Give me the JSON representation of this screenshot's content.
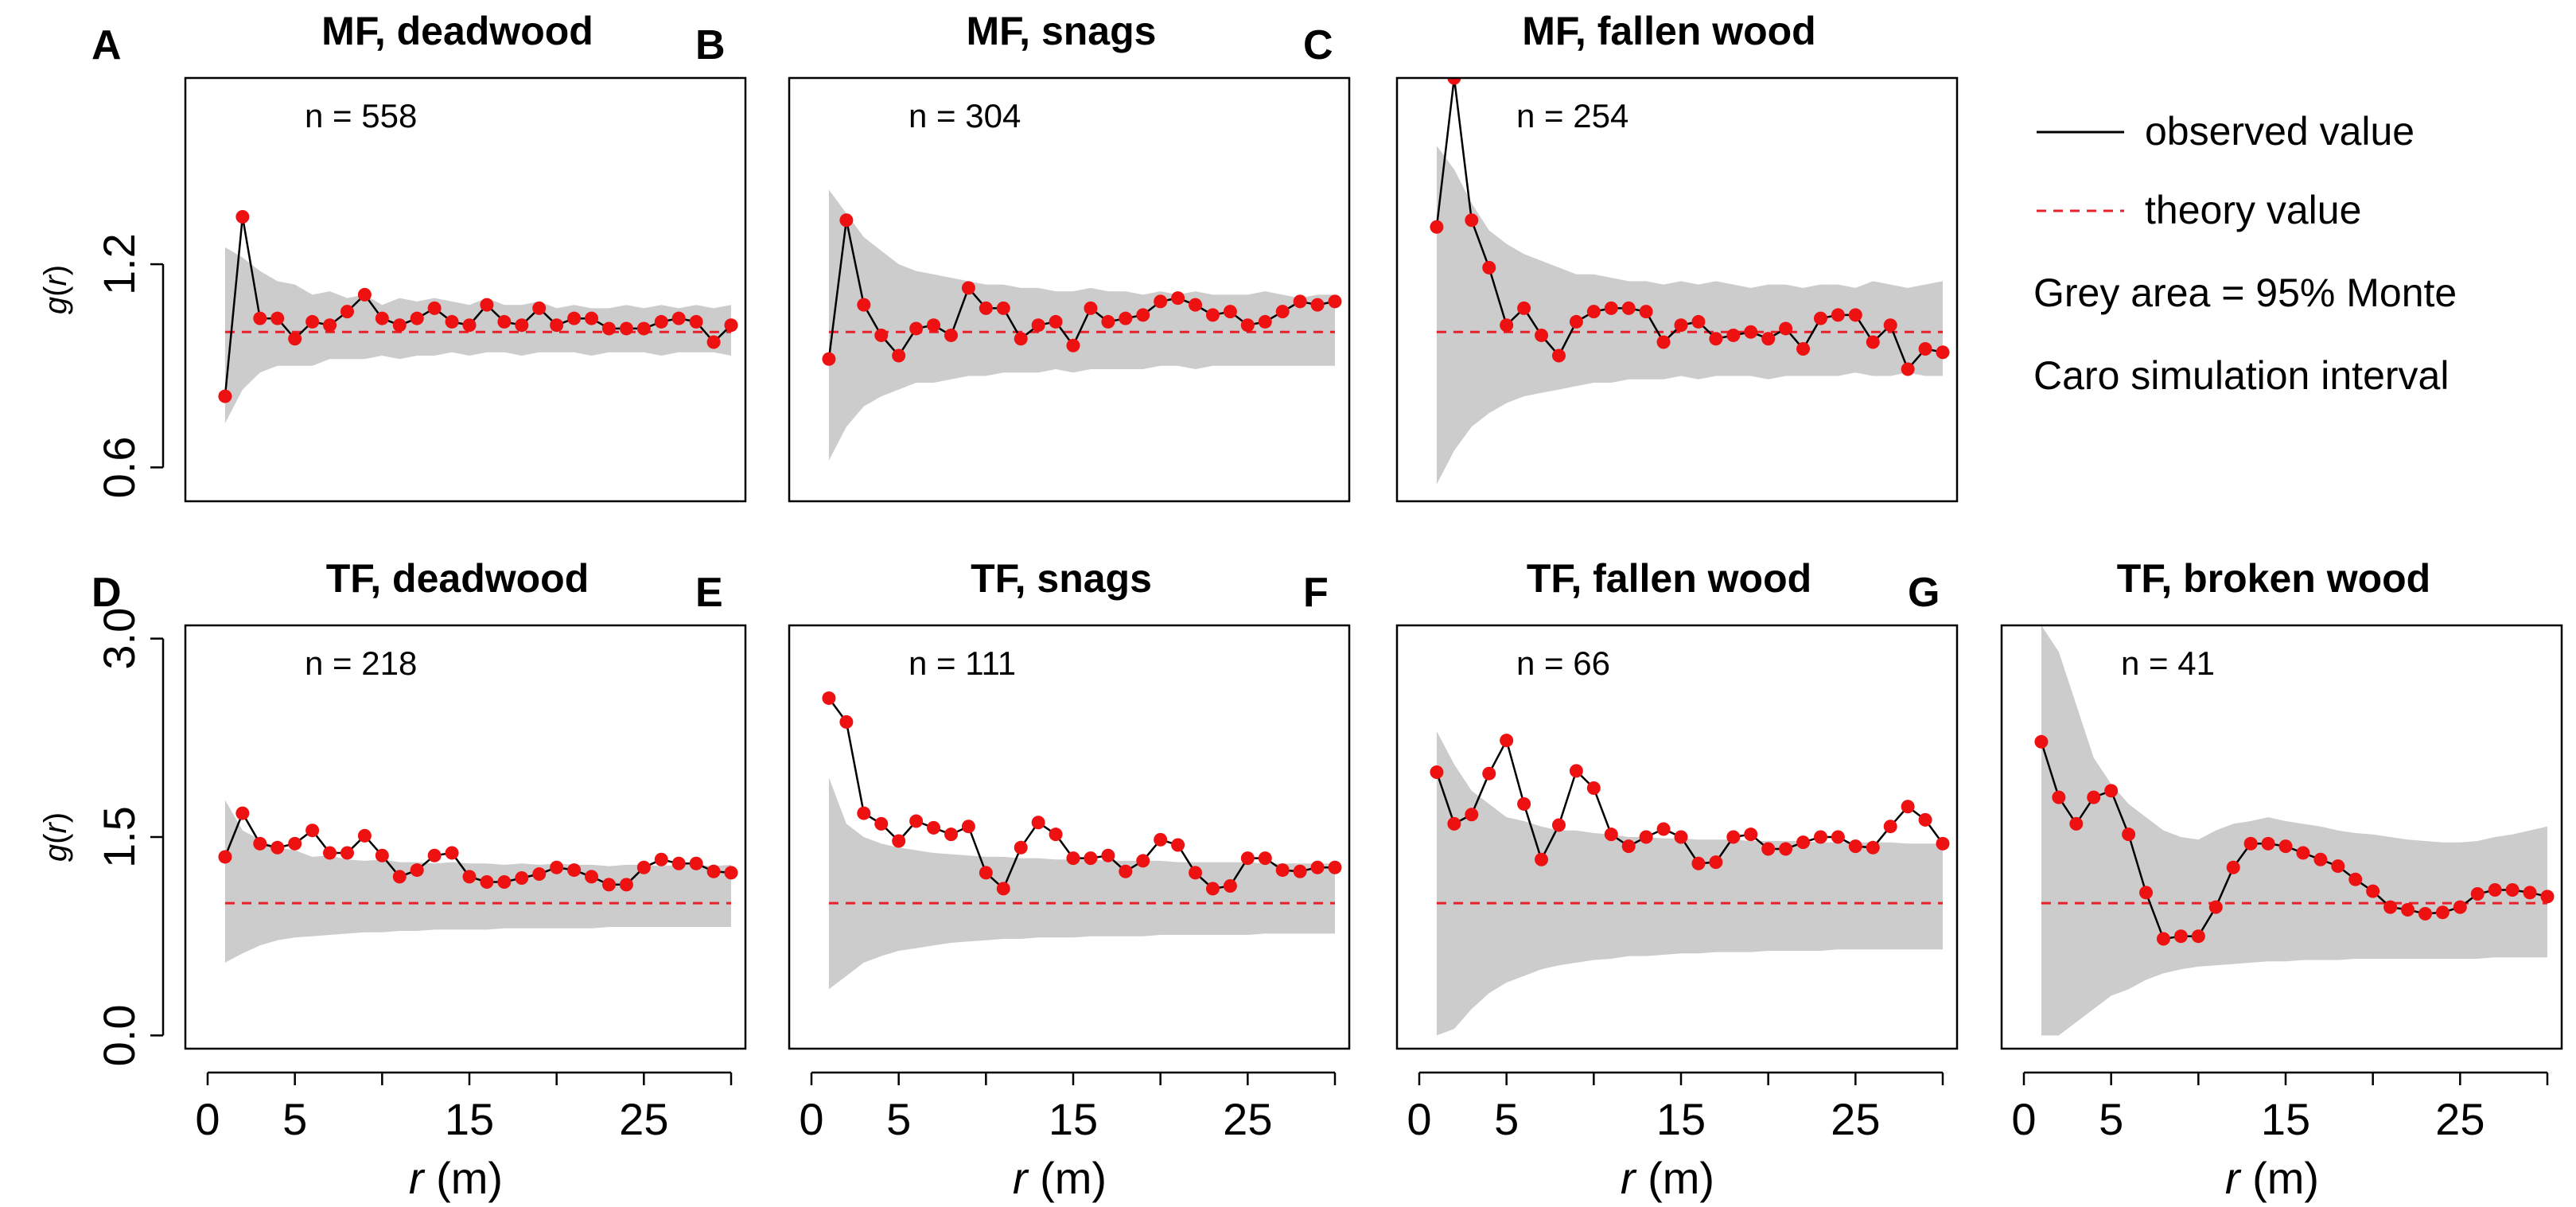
{
  "legend": {
    "observed_label": "observed value",
    "theory_label": "theory value",
    "note_line1": "Grey area = 95% Monte",
    "note_line2": "Caro simulation interval"
  },
  "axis_labels": {
    "y_symbol": "g",
    "y_var": "r",
    "x_var": "r",
    "x_unit": "(m)"
  },
  "colors": {
    "observed_line": "#000000",
    "points": "#ee1111",
    "theory": "#e8202a",
    "envelope": "#cccccc"
  },
  "chart_data": [
    {
      "id": "A",
      "type": "line",
      "title": "MF, deadwood",
      "n_label": "n = 558",
      "xlabel": "r (m)",
      "ylabel": "g(r)",
      "xlim": [
        0,
        30
      ],
      "ylim": [
        0.5,
        1.75
      ],
      "yticks": [
        0.6,
        1.2
      ],
      "xticks": [
        0,
        5,
        15,
        25
      ],
      "theory": 1.0,
      "x": [
        1,
        2,
        3,
        4,
        5,
        6,
        7,
        8,
        9,
        10,
        11,
        12,
        13,
        14,
        15,
        16,
        17,
        18,
        19,
        20,
        21,
        22,
        23,
        24,
        25,
        26,
        27,
        28,
        29,
        30
      ],
      "observed": [
        0.81,
        1.34,
        1.04,
        1.04,
        0.98,
        1.03,
        1.02,
        1.06,
        1.11,
        1.04,
        1.02,
        1.04,
        1.07,
        1.03,
        1.02,
        1.08,
        1.03,
        1.02,
        1.07,
        1.02,
        1.04,
        1.04,
        1.01,
        1.01,
        1.01,
        1.03,
        1.04,
        1.03,
        0.97,
        1.02
      ],
      "envelope_upper": [
        1.25,
        1.22,
        1.18,
        1.15,
        1.14,
        1.11,
        1.12,
        1.1,
        1.11,
        1.08,
        1.1,
        1.09,
        1.1,
        1.09,
        1.08,
        1.1,
        1.08,
        1.08,
        1.09,
        1.07,
        1.08,
        1.07,
        1.07,
        1.08,
        1.07,
        1.08,
        1.07,
        1.08,
        1.07,
        1.08
      ],
      "envelope_lower": [
        0.73,
        0.83,
        0.88,
        0.9,
        0.9,
        0.9,
        0.92,
        0.92,
        0.92,
        0.93,
        0.92,
        0.93,
        0.93,
        0.94,
        0.93,
        0.94,
        0.94,
        0.93,
        0.94,
        0.94,
        0.94,
        0.93,
        0.94,
        0.94,
        0.94,
        0.93,
        0.94,
        0.94,
        0.94,
        0.93
      ]
    },
    {
      "id": "B",
      "type": "line",
      "title": "MF, snags",
      "n_label": "n = 304",
      "xlabel": "r (m)",
      "ylabel": "g(r)",
      "xlim": [
        0,
        30
      ],
      "ylim": [
        0.5,
        1.75
      ],
      "yticks": [
        0.6,
        1.2
      ],
      "xticks": [
        0,
        5,
        15,
        25
      ],
      "theory": 1.0,
      "x": [
        1,
        2,
        3,
        4,
        5,
        6,
        7,
        8,
        9,
        10,
        11,
        12,
        13,
        14,
        15,
        16,
        17,
        18,
        19,
        20,
        21,
        22,
        23,
        24,
        25,
        26,
        27,
        28,
        29,
        30
      ],
      "observed": [
        0.92,
        1.33,
        1.08,
        0.99,
        0.93,
        1.01,
        1.02,
        0.99,
        1.13,
        1.07,
        1.07,
        0.98,
        1.02,
        1.03,
        0.96,
        1.07,
        1.03,
        1.04,
        1.05,
        1.09,
        1.1,
        1.08,
        1.05,
        1.06,
        1.02,
        1.03,
        1.06,
        1.09,
        1.08,
        1.09
      ],
      "envelope_upper": [
        1.42,
        1.35,
        1.28,
        1.24,
        1.2,
        1.18,
        1.17,
        1.16,
        1.15,
        1.14,
        1.14,
        1.13,
        1.13,
        1.12,
        1.12,
        1.13,
        1.12,
        1.12,
        1.11,
        1.12,
        1.11,
        1.12,
        1.11,
        1.11,
        1.11,
        1.12,
        1.11,
        1.1,
        1.11,
        1.11
      ],
      "envelope_lower": [
        0.62,
        0.72,
        0.78,
        0.81,
        0.83,
        0.85,
        0.85,
        0.86,
        0.87,
        0.87,
        0.88,
        0.88,
        0.88,
        0.89,
        0.88,
        0.89,
        0.89,
        0.89,
        0.89,
        0.9,
        0.9,
        0.89,
        0.9,
        0.9,
        0.9,
        0.9,
        0.9,
        0.9,
        0.9,
        0.9
      ]
    },
    {
      "id": "C",
      "type": "line",
      "title": "MF, fallen wood",
      "n_label": "n = 254",
      "xlabel": "r (m)",
      "ylabel": "g(r)",
      "xlim": [
        0,
        30
      ],
      "ylim": [
        0.5,
        1.75
      ],
      "yticks": [
        0.6,
        1.2
      ],
      "xticks": [
        0,
        5,
        15,
        25
      ],
      "theory": 1.0,
      "x": [
        1,
        2,
        3,
        4,
        5,
        6,
        7,
        8,
        9,
        10,
        11,
        12,
        13,
        14,
        15,
        16,
        17,
        18,
        19,
        20,
        21,
        22,
        23,
        24,
        25,
        26,
        27,
        28,
        29,
        30
      ],
      "observed": [
        1.31,
        1.75,
        1.33,
        1.19,
        1.02,
        1.07,
        0.99,
        0.93,
        1.03,
        1.06,
        1.07,
        1.07,
        1.06,
        0.97,
        1.02,
        1.03,
        0.98,
        0.99,
        1.0,
        0.98,
        1.01,
        0.95,
        1.04,
        1.05,
        1.05,
        0.97,
        1.02,
        0.89,
        0.95,
        0.94
      ],
      "envelope_upper": [
        1.55,
        1.48,
        1.38,
        1.3,
        1.26,
        1.23,
        1.21,
        1.19,
        1.17,
        1.17,
        1.16,
        1.15,
        1.15,
        1.14,
        1.15,
        1.14,
        1.15,
        1.14,
        1.13,
        1.14,
        1.14,
        1.13,
        1.14,
        1.14,
        1.13,
        1.15,
        1.14,
        1.13,
        1.14,
        1.15
      ],
      "envelope_lower": [
        0.55,
        0.65,
        0.72,
        0.76,
        0.79,
        0.81,
        0.82,
        0.83,
        0.84,
        0.85,
        0.85,
        0.86,
        0.86,
        0.86,
        0.87,
        0.86,
        0.87,
        0.87,
        0.87,
        0.86,
        0.87,
        0.87,
        0.87,
        0.87,
        0.88,
        0.87,
        0.87,
        0.88,
        0.87,
        0.87
      ]
    },
    {
      "id": "D",
      "type": "line",
      "title": "TF, deadwood",
      "n_label": "n = 218",
      "xlabel": "r (m)",
      "ylabel": "g(r)",
      "xlim": [
        0,
        30
      ],
      "ylim": [
        -0.1,
        3.1
      ],
      "yticks": [
        0.0,
        1.5,
        3.0
      ],
      "xticks": [
        0,
        5,
        15,
        25
      ],
      "theory": 1.0,
      "x": [
        1,
        2,
        3,
        4,
        5,
        6,
        7,
        8,
        9,
        10,
        11,
        12,
        13,
        14,
        15,
        16,
        17,
        18,
        19,
        20,
        21,
        22,
        23,
        24,
        25,
        26,
        27,
        28,
        29,
        30
      ],
      "observed": [
        1.35,
        1.68,
        1.45,
        1.42,
        1.45,
        1.55,
        1.38,
        1.38,
        1.51,
        1.36,
        1.2,
        1.25,
        1.36,
        1.38,
        1.2,
        1.16,
        1.16,
        1.19,
        1.22,
        1.27,
        1.25,
        1.2,
        1.14,
        1.14,
        1.27,
        1.33,
        1.3,
        1.3,
        1.24,
        1.23
      ],
      "envelope_upper": [
        1.78,
        1.55,
        1.48,
        1.42,
        1.4,
        1.35,
        1.36,
        1.33,
        1.32,
        1.33,
        1.31,
        1.31,
        1.3,
        1.31,
        1.3,
        1.3,
        1.29,
        1.3,
        1.29,
        1.3,
        1.29,
        1.29,
        1.28,
        1.29,
        1.29,
        1.28,
        1.29,
        1.29,
        1.28,
        1.29
      ],
      "envelope_lower": [
        0.55,
        0.62,
        0.68,
        0.72,
        0.74,
        0.75,
        0.76,
        0.77,
        0.78,
        0.78,
        0.79,
        0.79,
        0.8,
        0.8,
        0.8,
        0.8,
        0.81,
        0.81,
        0.81,
        0.81,
        0.81,
        0.81,
        0.82,
        0.82,
        0.82,
        0.82,
        0.82,
        0.82,
        0.82,
        0.82
      ]
    },
    {
      "id": "E",
      "type": "line",
      "title": "TF, snags",
      "n_label": "n = 111",
      "xlabel": "r (m)",
      "ylabel": "g(r)",
      "xlim": [
        0,
        30
      ],
      "ylim": [
        -0.1,
        3.1
      ],
      "yticks": [
        0.0,
        1.5,
        3.0
      ],
      "xticks": [
        0,
        5,
        15,
        25
      ],
      "theory": 1.0,
      "x": [
        1,
        2,
        3,
        4,
        5,
        6,
        7,
        8,
        9,
        10,
        11,
        12,
        13,
        14,
        15,
        16,
        17,
        18,
        19,
        20,
        21,
        22,
        23,
        24,
        25,
        26,
        27,
        28,
        29,
        30
      ],
      "observed": [
        2.55,
        2.37,
        1.68,
        1.6,
        1.47,
        1.62,
        1.57,
        1.52,
        1.58,
        1.23,
        1.11,
        1.42,
        1.61,
        1.52,
        1.34,
        1.34,
        1.36,
        1.24,
        1.32,
        1.48,
        1.44,
        1.23,
        1.11,
        1.13,
        1.34,
        1.34,
        1.25,
        1.24,
        1.27,
        1.27
      ],
      "envelope_upper": [
        1.95,
        1.6,
        1.5,
        1.45,
        1.42,
        1.4,
        1.38,
        1.37,
        1.36,
        1.35,
        1.35,
        1.34,
        1.34,
        1.33,
        1.33,
        1.33,
        1.32,
        1.32,
        1.32,
        1.32,
        1.31,
        1.31,
        1.31,
        1.31,
        1.31,
        1.3,
        1.3,
        1.3,
        1.3,
        1.3
      ],
      "envelope_lower": [
        0.35,
        0.45,
        0.55,
        0.6,
        0.64,
        0.66,
        0.68,
        0.7,
        0.71,
        0.72,
        0.73,
        0.73,
        0.74,
        0.74,
        0.74,
        0.75,
        0.75,
        0.75,
        0.75,
        0.76,
        0.76,
        0.76,
        0.76,
        0.76,
        0.76,
        0.77,
        0.77,
        0.77,
        0.77,
        0.77
      ]
    },
    {
      "id": "F",
      "type": "line",
      "title": "TF, fallen wood",
      "n_label": "n = 66",
      "xlabel": "r (m)",
      "ylabel": "g(r)",
      "xlim": [
        0,
        30
      ],
      "ylim": [
        -0.1,
        3.1
      ],
      "yticks": [
        0.0,
        1.5,
        3.0
      ],
      "xticks": [
        0,
        5,
        15,
        25
      ],
      "theory": 1.0,
      "x": [
        1,
        2,
        3,
        4,
        5,
        6,
        7,
        8,
        9,
        10,
        11,
        12,
        13,
        14,
        15,
        16,
        17,
        18,
        19,
        20,
        21,
        22,
        23,
        24,
        25,
        26,
        27,
        28,
        29,
        30
      ],
      "observed": [
        1.99,
        1.6,
        1.67,
        1.98,
        2.23,
        1.75,
        1.33,
        1.59,
        2.0,
        1.87,
        1.52,
        1.43,
        1.5,
        1.56,
        1.5,
        1.3,
        1.31,
        1.5,
        1.52,
        1.41,
        1.41,
        1.46,
        1.5,
        1.5,
        1.43,
        1.42,
        1.58,
        1.73,
        1.63,
        1.45
      ],
      "envelope_upper": [
        2.3,
        2.05,
        1.85,
        1.75,
        1.65,
        1.62,
        1.58,
        1.55,
        1.55,
        1.53,
        1.52,
        1.5,
        1.5,
        1.49,
        1.49,
        1.48,
        1.48,
        1.48,
        1.47,
        1.47,
        1.47,
        1.47,
        1.46,
        1.46,
        1.46,
        1.46,
        1.46,
        1.45,
        1.45,
        1.45
      ],
      "envelope_lower": [
        0.0,
        0.05,
        0.2,
        0.32,
        0.4,
        0.45,
        0.5,
        0.53,
        0.55,
        0.57,
        0.58,
        0.6,
        0.6,
        0.61,
        0.62,
        0.62,
        0.63,
        0.63,
        0.63,
        0.64,
        0.64,
        0.64,
        0.64,
        0.65,
        0.65,
        0.65,
        0.65,
        0.65,
        0.65,
        0.65
      ]
    },
    {
      "id": "G",
      "type": "line",
      "title": "TF, broken wood",
      "n_label": "n = 41",
      "xlabel": "r (m)",
      "ylabel": "g(r)",
      "xlim": [
        0,
        30
      ],
      "ylim": [
        -0.1,
        3.1
      ],
      "yticks": [
        0.0,
        1.5,
        3.0
      ],
      "xticks": [
        0,
        5,
        15,
        25
      ],
      "theory": 1.0,
      "x": [
        1,
        2,
        3,
        4,
        5,
        6,
        7,
        8,
        9,
        10,
        11,
        12,
        13,
        14,
        15,
        16,
        17,
        18,
        19,
        20,
        21,
        22,
        23,
        24,
        25,
        26,
        27,
        28,
        29,
        30
      ],
      "observed": [
        2.22,
        1.8,
        1.6,
        1.8,
        1.85,
        1.52,
        1.08,
        0.73,
        0.75,
        0.75,
        0.97,
        1.27,
        1.45,
        1.45,
        1.43,
        1.38,
        1.33,
        1.28,
        1.18,
        1.09,
        0.97,
        0.95,
        0.92,
        0.93,
        0.97,
        1.07,
        1.1,
        1.1,
        1.08,
        1.05
      ],
      "envelope_upper": [
        3.1,
        2.9,
        2.5,
        2.1,
        1.9,
        1.75,
        1.65,
        1.55,
        1.5,
        1.48,
        1.55,
        1.6,
        1.62,
        1.65,
        1.62,
        1.6,
        1.58,
        1.55,
        1.53,
        1.52,
        1.5,
        1.48,
        1.47,
        1.46,
        1.46,
        1.47,
        1.5,
        1.52,
        1.55,
        1.58
      ],
      "envelope_lower": [
        0.0,
        0.0,
        0.1,
        0.2,
        0.3,
        0.35,
        0.42,
        0.47,
        0.5,
        0.52,
        0.53,
        0.54,
        0.55,
        0.56,
        0.56,
        0.57,
        0.57,
        0.57,
        0.58,
        0.58,
        0.58,
        0.58,
        0.58,
        0.58,
        0.58,
        0.58,
        0.59,
        0.59,
        0.59,
        0.59
      ]
    }
  ]
}
